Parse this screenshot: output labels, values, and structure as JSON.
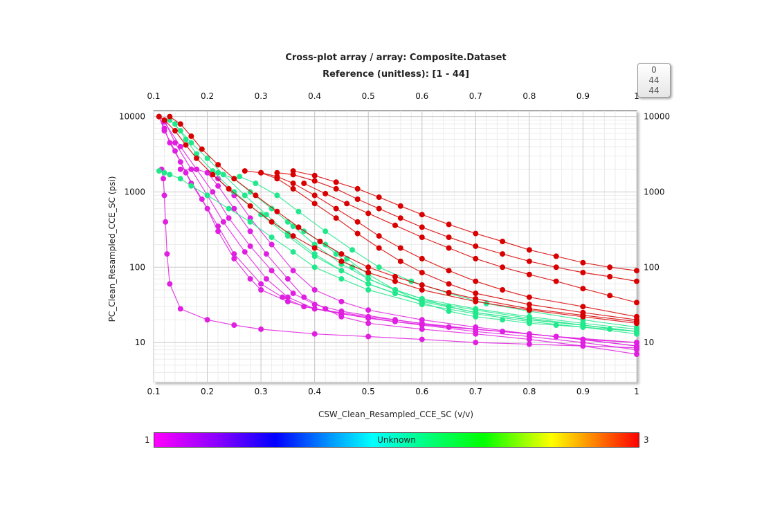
{
  "chart_data": {
    "type": "scatter",
    "title": "Cross-plot array / array: Composite.Dataset",
    "subtitle": "Reference (unitless): [1 - 44]",
    "xlabel": "CSW_Clean_Resampled_CCE_SC (v/v)",
    "ylabel": "PC_Clean_Resampled_CCE_SC (psi)",
    "x_ticks": [
      "0.1",
      "0.2",
      "0.3",
      "0.4",
      "0.5",
      "0.6",
      "0.7",
      "0.8",
      "0.9",
      "1"
    ],
    "y_ticks": [
      "10",
      "100",
      "1000",
      "10000"
    ],
    "xlim": [
      0.1,
      1.0
    ],
    "ylim": [
      3,
      12000
    ],
    "yscale": "log",
    "grid": true,
    "colorbar": {
      "min_label": "1",
      "max_label": "3",
      "center_label": "Unknown"
    },
    "reference_widget": [
      "0",
      "44",
      "44"
    ],
    "colors": {
      "magenta": "#e020e0",
      "green": "#22e88c",
      "red": "#d80000"
    },
    "series": [
      {
        "color": "magenta",
        "x": [
          0.115,
          0.118,
          0.12,
          0.122,
          0.125,
          0.13,
          0.15,
          0.2,
          0.25,
          0.3,
          0.4,
          0.5,
          0.6,
          0.7,
          0.8,
          0.9,
          1.0
        ],
        "y": [
          2000,
          1500,
          900,
          400,
          150,
          60,
          28,
          20,
          17,
          15,
          13,
          12,
          11,
          10,
          9.5,
          9,
          8.5
        ]
      },
      {
        "color": "magenta",
        "x": [
          0.11,
          0.12,
          0.13,
          0.15,
          0.17,
          0.2,
          0.22,
          0.25,
          0.28,
          0.3,
          0.35,
          0.4,
          0.5,
          0.6,
          0.7,
          0.8,
          0.9,
          1.0
        ],
        "y": [
          10000,
          7000,
          4500,
          2500,
          1300,
          600,
          300,
          130,
          70,
          50,
          35,
          28,
          22,
          18,
          15,
          13,
          11,
          10
        ]
      },
      {
        "color": "magenta",
        "x": [
          0.11,
          0.12,
          0.14,
          0.16,
          0.19,
          0.22,
          0.25,
          0.3,
          0.34,
          0.38,
          0.45,
          0.55,
          0.65,
          0.75,
          0.85,
          1.0
        ],
        "y": [
          10000,
          6500,
          3500,
          1800,
          800,
          350,
          150,
          60,
          40,
          30,
          24,
          19,
          16,
          14,
          12,
          9
        ]
      },
      {
        "color": "magenta",
        "x": [
          0.12,
          0.14,
          0.17,
          0.2,
          0.23,
          0.27,
          0.31,
          0.35,
          0.4,
          0.5,
          0.6,
          0.7,
          0.8,
          0.9,
          1.0
        ],
        "y": [
          9000,
          4500,
          2000,
          900,
          400,
          160,
          70,
          40,
          28,
          21,
          17,
          14,
          12,
          10,
          8
        ]
      },
      {
        "color": "magenta",
        "x": [
          0.12,
          0.15,
          0.18,
          0.21,
          0.24,
          0.28,
          0.32,
          0.36,
          0.4,
          0.45,
          0.55,
          0.65,
          0.75,
          0.85,
          1.0
        ],
        "y": [
          8500,
          4000,
          2000,
          1000,
          450,
          190,
          90,
          45,
          32,
          26,
          20,
          16,
          14,
          12,
          10
        ]
      },
      {
        "color": "magenta",
        "x": [
          0.15,
          0.18,
          0.2,
          0.22,
          0.25,
          0.28,
          0.31,
          0.35,
          0.38,
          0.42,
          0.45,
          0.5,
          0.6,
          0.7,
          0.8,
          0.9,
          1.0
        ],
        "y": [
          2000,
          2000,
          1800,
          1200,
          600,
          300,
          150,
          70,
          40,
          28,
          22,
          18,
          15,
          13,
          11,
          9,
          7
        ]
      },
      {
        "color": "magenta",
        "x": [
          0.2,
          0.22,
          0.25,
          0.28,
          0.32,
          0.36,
          0.4,
          0.45,
          0.5,
          0.6,
          0.7,
          0.8,
          0.9,
          1.0
        ],
        "y": [
          1800,
          1500,
          900,
          450,
          200,
          90,
          50,
          35,
          27,
          20,
          16,
          13,
          11,
          9
        ]
      },
      {
        "color": "green",
        "x": [
          0.11,
          0.12,
          0.13,
          0.15,
          0.17,
          0.2,
          0.24,
          0.28,
          0.32,
          0.36,
          0.4,
          0.45,
          0.5,
          0.6,
          0.7,
          0.8,
          0.9,
          1.0
        ],
        "y": [
          1900,
          1800,
          1700,
          1500,
          1200,
          900,
          600,
          400,
          250,
          160,
          100,
          70,
          50,
          32,
          24,
          19,
          16,
          13
        ]
      },
      {
        "color": "green",
        "x": [
          0.13,
          0.15,
          0.17,
          0.2,
          0.23,
          0.27,
          0.31,
          0.35,
          0.4,
          0.45,
          0.5,
          0.55,
          0.6,
          0.7,
          0.8,
          0.9,
          1.0
        ],
        "y": [
          9000,
          6500,
          4500,
          2800,
          1700,
          900,
          500,
          280,
          150,
          90,
          60,
          45,
          35,
          25,
          20,
          17,
          14
        ]
      },
      {
        "color": "green",
        "x": [
          0.14,
          0.16,
          0.18,
          0.21,
          0.25,
          0.3,
          0.35,
          0.4,
          0.45,
          0.5,
          0.55,
          0.6,
          0.7,
          0.8,
          0.9,
          1.0
        ],
        "y": [
          8000,
          5000,
          3200,
          1900,
          1000,
          500,
          260,
          140,
          90,
          60,
          45,
          36,
          27,
          21,
          17,
          14
        ]
      },
      {
        "color": "green",
        "x": [
          0.22,
          0.25,
          0.28,
          0.32,
          0.36,
          0.4,
          0.45,
          0.5,
          0.55,
          0.6,
          0.7,
          0.8,
          0.9,
          1.0
        ],
        "y": [
          1800,
          1500,
          1000,
          600,
          350,
          200,
          110,
          70,
          50,
          38,
          28,
          22,
          18,
          15
        ]
      },
      {
        "color": "green",
        "x": [
          0.26,
          0.29,
          0.33,
          0.37,
          0.42,
          0.47,
          0.52,
          0.58,
          0.65,
          0.72,
          0.8,
          0.9,
          1.0
        ],
        "y": [
          1600,
          1300,
          900,
          550,
          300,
          170,
          100,
          65,
          45,
          33,
          26,
          20,
          16
        ]
      },
      {
        "color": "green",
        "x": [
          0.35,
          0.38,
          0.41,
          0.44,
          0.47,
          0.5,
          0.55,
          0.6,
          0.65,
          0.7,
          0.8,
          0.9,
          1.0
        ],
        "y": [
          400,
          300,
          220,
          150,
          100,
          70,
          50,
          38,
          30,
          25,
          20,
          17,
          14
        ]
      },
      {
        "color": "green",
        "x": [
          0.42,
          0.46,
          0.5,
          0.55,
          0.6,
          0.65,
          0.7,
          0.75,
          0.8,
          0.85,
          0.9,
          0.95,
          1.0
        ],
        "y": [
          200,
          130,
          80,
          50,
          34,
          26,
          22,
          20,
          18,
          17,
          16,
          15,
          14
        ]
      },
      {
        "color": "red",
        "x": [
          0.11,
          0.12,
          0.14,
          0.16,
          0.18,
          0.21,
          0.24,
          0.28,
          0.32,
          0.36,
          0.4,
          0.45,
          0.5,
          0.55,
          0.6,
          0.7,
          0.8,
          0.9,
          1.0
        ],
        "y": [
          10000,
          9000,
          6500,
          4200,
          2800,
          1700,
          1100,
          650,
          400,
          260,
          180,
          120,
          85,
          65,
          50,
          35,
          27,
          22,
          18
        ]
      },
      {
        "color": "red",
        "x": [
          0.13,
          0.15,
          0.17,
          0.19,
          0.22,
          0.25,
          0.29,
          0.33,
          0.37,
          0.41,
          0.45,
          0.5,
          0.55,
          0.6,
          0.65,
          0.7,
          0.8,
          0.9,
          1.0
        ],
        "y": [
          10000,
          8000,
          5500,
          3700,
          2300,
          1500,
          900,
          550,
          340,
          220,
          150,
          100,
          75,
          58,
          46,
          38,
          28,
          23,
          19
        ]
      },
      {
        "color": "red",
        "x": [
          0.27,
          0.3,
          0.33,
          0.36,
          0.4,
          0.44,
          0.48,
          0.52,
          0.56,
          0.6,
          0.65,
          0.7,
          0.8,
          0.9,
          1.0
        ],
        "y": [
          1900,
          1800,
          1500,
          1100,
          700,
          450,
          280,
          180,
          120,
          85,
          60,
          45,
          32,
          25,
          20
        ]
      },
      {
        "color": "red",
        "x": [
          0.3,
          0.33,
          0.36,
          0.4,
          0.44,
          0.48,
          0.52,
          0.56,
          0.6,
          0.65,
          0.7,
          0.75,
          0.8,
          0.9,
          1.0
        ],
        "y": [
          1800,
          1600,
          1300,
          900,
          600,
          400,
          260,
          180,
          130,
          90,
          65,
          50,
          40,
          30,
          22
        ]
      },
      {
        "color": "red",
        "x": [
          0.33,
          0.36,
          0.4,
          0.44,
          0.48,
          0.52,
          0.56,
          0.6,
          0.65,
          0.7,
          0.75,
          0.8,
          0.85,
          0.9,
          0.95,
          1.0
        ],
        "y": [
          1800,
          1700,
          1400,
          1100,
          800,
          600,
          450,
          340,
          250,
          190,
          150,
          120,
          100,
          85,
          75,
          65
        ]
      },
      {
        "color": "red",
        "x": [
          0.36,
          0.4,
          0.44,
          0.48,
          0.52,
          0.56,
          0.6,
          0.65,
          0.7,
          0.75,
          0.8,
          0.85,
          0.9,
          0.95,
          1.0
        ],
        "y": [
          1900,
          1650,
          1350,
          1100,
          850,
          650,
          500,
          370,
          280,
          220,
          170,
          140,
          115,
          100,
          90
        ]
      },
      {
        "color": "red",
        "x": [
          0.38,
          0.42,
          0.46,
          0.5,
          0.55,
          0.6,
          0.65,
          0.7,
          0.75,
          0.8,
          0.85,
          0.9,
          0.95,
          1.0
        ],
        "y": [
          1300,
          950,
          700,
          520,
          360,
          250,
          180,
          130,
          100,
          80,
          65,
          52,
          42,
          34
        ]
      }
    ]
  }
}
